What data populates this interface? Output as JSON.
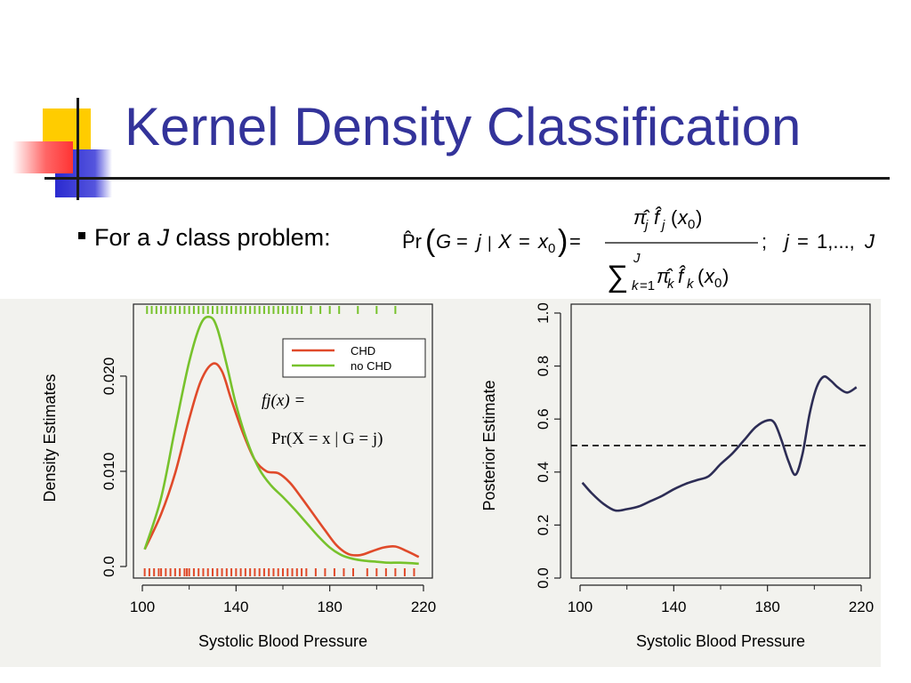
{
  "slide": {
    "title": "Kernel Density Classification",
    "bullet": {
      "prefix": "For a ",
      "variable": "J",
      "suffix": " class problem:"
    },
    "formula": {
      "lhs_pr": "Pr",
      "lhs_args": "G = j | X = x",
      "lhs_sub": "0",
      "numerator": "π j f j (x0)",
      "denominator": "∑ k=1..J π k f k (x0)",
      "tail": "; j = 1,..., J"
    }
  },
  "colors": {
    "title": "#33339a",
    "chd": "#e04a2a",
    "no_chd": "#77c22c",
    "posterior": "#2d2d55",
    "deco_yellow": "#ffcc00",
    "deco_blue": "#3333cc",
    "deco_red": "#ff5555"
  },
  "annotation": {
    "line1": "fj(x) =",
    "line2": "Pr(X = x | G = j)"
  },
  "chart_data": [
    {
      "type": "line",
      "xlabel": "Systolic Blood Pressure",
      "ylabel": "Density Estimates",
      "xlim": [
        100,
        220
      ],
      "ylim": [
        0,
        0.027
      ],
      "x_ticks": [
        100,
        140,
        180,
        220
      ],
      "y_ticks": [
        0.0,
        0.01,
        0.02
      ],
      "y_tick_labels": [
        "0.0",
        "0.010",
        "0.020"
      ],
      "grid": false,
      "legend": {
        "placement": "top-right",
        "entries": [
          "CHD",
          "no CHD"
        ]
      },
      "series": [
        {
          "name": "CHD",
          "color": "#e04a2a",
          "x": [
            101,
            108,
            114,
            120,
            125,
            130,
            134,
            138,
            143,
            148,
            153,
            158,
            163,
            168,
            173,
            178,
            183,
            188,
            193,
            198,
            203,
            208,
            213,
            218
          ],
          "y": [
            0.0018,
            0.0055,
            0.0098,
            0.0155,
            0.0195,
            0.0213,
            0.0205,
            0.0175,
            0.014,
            0.0112,
            0.01,
            0.0098,
            0.0088,
            0.0072,
            0.0055,
            0.0038,
            0.0022,
            0.0013,
            0.0012,
            0.0016,
            0.002,
            0.0021,
            0.0016,
            0.001
          ]
        },
        {
          "name": "no CHD",
          "color": "#77c22c",
          "x": [
            101,
            108,
            114,
            120,
            125,
            129,
            132,
            136,
            140,
            145,
            150,
            155,
            160,
            165,
            170,
            175,
            180,
            185,
            190,
            195,
            200,
            205,
            210,
            218
          ],
          "y": [
            0.0018,
            0.0072,
            0.0145,
            0.0215,
            0.0255,
            0.0262,
            0.025,
            0.0212,
            0.017,
            0.013,
            0.0102,
            0.0085,
            0.0073,
            0.006,
            0.0046,
            0.0032,
            0.002,
            0.0012,
            0.0008,
            0.0006,
            0.0005,
            0.0004,
            0.0004,
            0.0003
          ]
        }
      ],
      "rug_chd": [
        101,
        103,
        105,
        107,
        108,
        110,
        112,
        114,
        116,
        118,
        119,
        120,
        122,
        124,
        126,
        128,
        130,
        132,
        134,
        136,
        138,
        140,
        142,
        144,
        146,
        148,
        150,
        152,
        154,
        156,
        158,
        160,
        162,
        164,
        166,
        168,
        170,
        174,
        178,
        182,
        186,
        190,
        196,
        200,
        204,
        208,
        212,
        216
      ],
      "rug_no_chd": [
        102,
        104,
        106,
        108,
        110,
        112,
        114,
        116,
        118,
        120,
        122,
        124,
        126,
        128,
        130,
        132,
        134,
        136,
        138,
        140,
        142,
        144,
        146,
        148,
        150,
        152,
        154,
        156,
        158,
        160,
        162,
        164,
        166,
        168,
        172,
        176,
        180,
        184,
        192,
        200,
        208
      ]
    },
    {
      "type": "line",
      "xlabel": "Systolic Blood Pressure",
      "ylabel": "Posterior Estimate",
      "xlim": [
        100,
        220
      ],
      "ylim": [
        0.0,
        1.0
      ],
      "x_ticks": [
        100,
        140,
        180,
        220
      ],
      "y_ticks": [
        0.0,
        0.2,
        0.4,
        0.6,
        0.8,
        1.0
      ],
      "y_tick_labels": [
        "0.0",
        "0.2",
        "0.4",
        "0.6",
        "0.8",
        "1.0"
      ],
      "grid": false,
      "reference_line": 0.5,
      "series": [
        {
          "name": "",
          "color": "#2d2d55",
          "x": [
            101,
            105,
            110,
            115,
            120,
            125,
            130,
            135,
            140,
            145,
            150,
            155,
            160,
            165,
            170,
            175,
            180,
            183,
            186,
            189,
            192,
            195,
            198,
            201,
            204,
            207,
            210,
            214,
            218
          ],
          "y": [
            0.36,
            0.32,
            0.28,
            0.255,
            0.26,
            0.27,
            0.29,
            0.31,
            0.335,
            0.355,
            0.37,
            0.385,
            0.43,
            0.47,
            0.52,
            0.57,
            0.595,
            0.585,
            0.52,
            0.44,
            0.39,
            0.47,
            0.62,
            0.72,
            0.76,
            0.745,
            0.72,
            0.7,
            0.72
          ]
        }
      ]
    }
  ]
}
